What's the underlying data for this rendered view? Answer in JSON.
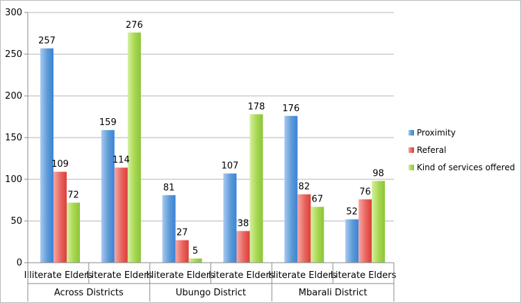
{
  "chart_data": {
    "type": "bar",
    "title": "",
    "xlabel": "",
    "ylabel": "",
    "ylim": [
      0,
      300
    ],
    "yticks": [
      0,
      50,
      100,
      150,
      200,
      250,
      300
    ],
    "grid": true,
    "legend_position": "right",
    "groups": [
      {
        "label": "Across Districts",
        "categories": [
          "Illiterate Elders",
          "Literate Elders"
        ]
      },
      {
        "label": "Ubungo District",
        "categories": [
          "Illiterate Elders",
          "Literate Elders"
        ]
      },
      {
        "label": "Mbarali District",
        "categories": [
          "Illiterate Elders",
          "Literate Elders"
        ]
      }
    ],
    "categories": [
      "Illiterate Elders",
      "Literate Elders",
      "Illiterate Elders",
      "Literate Elders",
      "Illiterate Elders",
      "Literate Elders"
    ],
    "series": [
      {
        "name": "Proximity",
        "color": "#5b9bd5",
        "values": [
          257,
          159,
          81,
          107,
          176,
          52
        ]
      },
      {
        "name": "Referal",
        "color": "#e8645f",
        "values": [
          109,
          114,
          27,
          38,
          82,
          76
        ]
      },
      {
        "name": "Kind of services offered",
        "color": "#a6d64f",
        "values": [
          72,
          276,
          5,
          178,
          67,
          98
        ]
      }
    ]
  }
}
